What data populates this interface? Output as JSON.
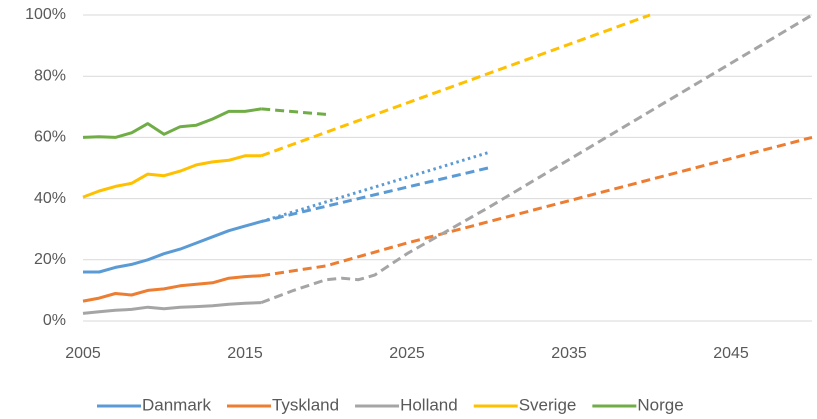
{
  "chart_data": {
    "type": "line",
    "xlim": [
      2005,
      2050
    ],
    "xticks": [
      2005,
      2015,
      2025,
      2035,
      2045
    ],
    "ylim": [
      0,
      100
    ],
    "yticks": [
      {
        "value": 0,
        "label": "0%"
      },
      {
        "value": 20,
        "label": "20%"
      },
      {
        "value": 40,
        "label": "40%"
      },
      {
        "value": 60,
        "label": "60%"
      },
      {
        "value": 80,
        "label": "80%"
      },
      {
        "value": 100,
        "label": "100%"
      }
    ],
    "grid": true,
    "legend": "bottom",
    "series": [
      {
        "name": "Danmark",
        "color": "#5b9bd5",
        "segments": [
          {
            "style": "solid",
            "x": [
              2005,
              2006,
              2007,
              2008,
              2009,
              2010,
              2011,
              2012,
              2013,
              2014,
              2015,
              2016
            ],
            "values": [
              16,
              16,
              17.5,
              18.5,
              20,
              22,
              23.5,
              25.5,
              27.5,
              29.5,
              31,
              32.5
            ]
          },
          {
            "style": "dashed",
            "x": [
              2016,
              2030
            ],
            "values": [
              32.5,
              50
            ]
          },
          {
            "style": "dotted",
            "x": [
              2016,
              2030
            ],
            "values": [
              32.5,
              55
            ]
          }
        ]
      },
      {
        "name": "Tyskland",
        "color": "#ed7d31",
        "segments": [
          {
            "style": "solid",
            "x": [
              2005,
              2006,
              2007,
              2008,
              2009,
              2010,
              2011,
              2012,
              2013,
              2014,
              2015,
              2016
            ],
            "values": [
              6.5,
              7.5,
              9,
              8.5,
              10,
              10.5,
              11.5,
              12,
              12.5,
              14,
              14.5,
              14.8
            ]
          },
          {
            "style": "dashed",
            "x": [
              2016,
              2020,
              2025,
              2050
            ],
            "values": [
              14.8,
              18,
              25.5,
              60
            ]
          }
        ]
      },
      {
        "name": "Holland",
        "color": "#a5a5a5",
        "segments": [
          {
            "style": "solid",
            "x": [
              2005,
              2006,
              2007,
              2008,
              2009,
              2010,
              2011,
              2012,
              2013,
              2014,
              2015,
              2016
            ],
            "values": [
              2.5,
              3,
              3.5,
              3.8,
              4.5,
              4,
              4.5,
              4.7,
              5,
              5.5,
              5.8,
              6
            ]
          },
          {
            "style": "dashed",
            "x": [
              2016,
              2018,
              2020,
              2021,
              2022,
              2023,
              2025,
              2030,
              2050
            ],
            "values": [
              6,
              10,
              13.5,
              14,
              13.5,
              15,
              22,
              37,
              100
            ]
          }
        ]
      },
      {
        "name": "Sverige",
        "color": "#ffc000",
        "segments": [
          {
            "style": "solid",
            "x": [
              2005,
              2006,
              2007,
              2008,
              2009,
              2010,
              2011,
              2012,
              2013,
              2014,
              2015,
              2016
            ],
            "values": [
              40.5,
              42.5,
              44,
              45,
              48,
              47.5,
              49,
              51,
              52,
              52.5,
              54,
              54
            ]
          },
          {
            "style": "dashed",
            "x": [
              2016,
              2040
            ],
            "values": [
              54,
              100
            ]
          }
        ]
      },
      {
        "name": "Norge",
        "color": "#70ad47",
        "segments": [
          {
            "style": "solid",
            "x": [
              2005,
              2006,
              2007,
              2008,
              2009,
              2010,
              2011,
              2012,
              2013,
              2014,
              2015,
              2016
            ],
            "values": [
              60,
              60.2,
              60,
              61.5,
              64.5,
              61,
              63.5,
              64,
              66,
              68.5,
              68.5,
              69.3
            ]
          },
          {
            "style": "dashed",
            "x": [
              2016,
              2020
            ],
            "values": [
              69.3,
              67.5
            ]
          }
        ]
      }
    ]
  }
}
